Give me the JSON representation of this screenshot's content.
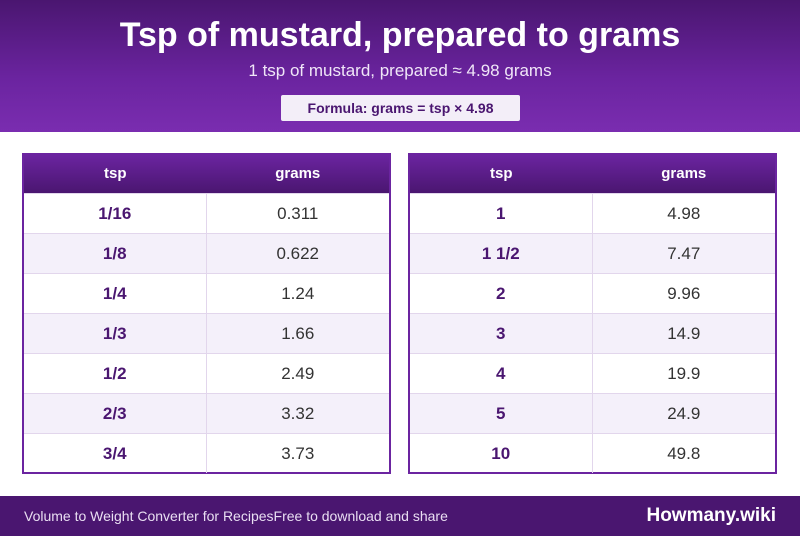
{
  "header": {
    "title": "Tsp of mustard, prepared to grams",
    "subtitle": "1 tsp of mustard, prepared ≈ 4.98 grams",
    "formula": "Formula: grams = tsp × 4.98"
  },
  "tables": [
    {
      "col1": "tsp",
      "col2": "grams",
      "rows": [
        {
          "tsp": "1/16",
          "grams": "0.311"
        },
        {
          "tsp": "1/8",
          "grams": "0.622"
        },
        {
          "tsp": "1/4",
          "grams": "1.24"
        },
        {
          "tsp": "1/3",
          "grams": "1.66"
        },
        {
          "tsp": "1/2",
          "grams": "2.49"
        },
        {
          "tsp": "2/3",
          "grams": "3.32"
        },
        {
          "tsp": "3/4",
          "grams": "3.73"
        }
      ]
    },
    {
      "col1": "tsp",
      "col2": "grams",
      "rows": [
        {
          "tsp": "1",
          "grams": "4.98"
        },
        {
          "tsp": "1 1/2",
          "grams": "7.47"
        },
        {
          "tsp": "2",
          "grams": "9.96"
        },
        {
          "tsp": "3",
          "grams": "14.9"
        },
        {
          "tsp": "4",
          "grams": "19.9"
        },
        {
          "tsp": "5",
          "grams": "24.9"
        },
        {
          "tsp": "10",
          "grams": "49.8"
        }
      ]
    }
  ],
  "footer": {
    "left_text": "Volume to Weight Converter for RecipesFree to download and share",
    "brand": "Howmany.wiki"
  },
  "colors": {
    "primary": "#6b24a0",
    "dark": "#4a1670",
    "row_alt": "#f4f0fa"
  }
}
